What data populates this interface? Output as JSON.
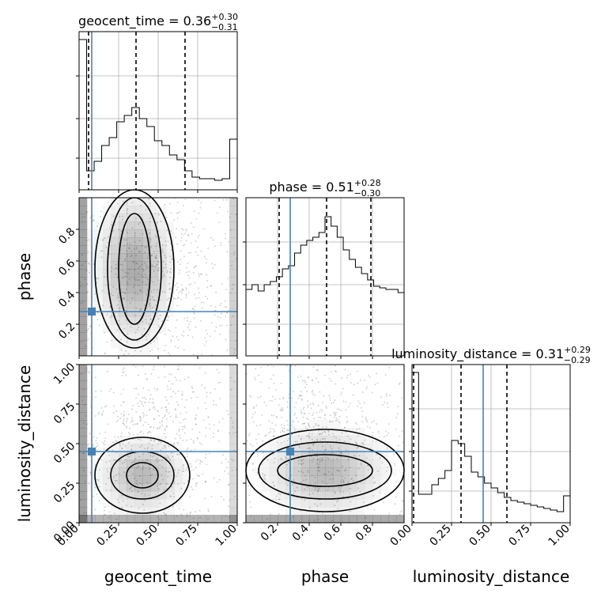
{
  "chart_data": {
    "type": "corner",
    "parameters": [
      "geocent_time",
      "phase",
      "luminosity_distance"
    ],
    "axis_labels": {
      "x": [
        "geocent_time",
        "phase",
        "luminosity_distance"
      ],
      "y_phase": "phase",
      "y_luminosity_distance": "luminosity_distance"
    },
    "ranges": {
      "geocent_time": [
        0,
        1
      ],
      "phase": [
        0,
        1
      ],
      "luminosity_distance": [
        0,
        1
      ]
    },
    "ticks": {
      "geocent_time": {
        "values": [
          0,
          0.25,
          0.5,
          0.75,
          1.0
        ],
        "labels": [
          "0.00",
          "0.25",
          "0.50",
          "0.75",
          "1.00"
        ]
      },
      "phase": {
        "values": [
          0.2,
          0.4,
          0.6,
          0.8
        ],
        "labels": [
          "0.2",
          "0.4",
          "0.6",
          "0.8"
        ]
      },
      "luminosity_distance": {
        "values": [
          0,
          0.25,
          0.5,
          0.75,
          1.0
        ],
        "labels": [
          "0.00",
          "0.25",
          "0.50",
          "0.75",
          "1.00"
        ]
      }
    },
    "titles": [
      {
        "param": "geocent_time",
        "prefix": "geocent_time = ",
        "median": "0.36",
        "plus": "+0.30",
        "minus": "−0.31"
      },
      {
        "param": "phase",
        "prefix": "phase = ",
        "median": "0.51",
        "plus": "+0.28",
        "minus": "−0.30"
      },
      {
        "param": "luminosity_distance",
        "prefix": "luminosity_distance = ",
        "median": "0.31",
        "plus": "+0.29",
        "minus": "−0.29"
      }
    ],
    "truths": {
      "geocent_time": 0.08,
      "phase": 0.28,
      "luminosity_distance": 0.45
    },
    "quantiles": {
      "geocent_time": [
        0.06,
        0.36,
        0.67
      ],
      "phase": [
        0.21,
        0.51,
        0.79
      ],
      "luminosity_distance": [
        0.01,
        0.31,
        0.6
      ]
    },
    "histograms": {
      "geocent_time": [
        0.95,
        0.12,
        0.18,
        0.28,
        0.33,
        0.43,
        0.47,
        0.52,
        0.45,
        0.4,
        0.31,
        0.28,
        0.22,
        0.19,
        0.12,
        0.08,
        0.07,
        0.07,
        0.06,
        0.07,
        0.32
      ],
      "phase": [
        0.42,
        0.45,
        0.41,
        0.45,
        0.47,
        0.5,
        0.55,
        0.57,
        0.65,
        0.7,
        0.73,
        0.75,
        0.78,
        0.88,
        0.82,
        0.75,
        0.67,
        0.61,
        0.56,
        0.52,
        0.48,
        0.44,
        0.43,
        0.42,
        0.42,
        0.4
      ],
      "luminosity_distance": [
        0.95,
        0.18,
        0.18,
        0.24,
        0.28,
        0.33,
        0.52,
        0.5,
        0.42,
        0.32,
        0.29,
        0.25,
        0.22,
        0.19,
        0.16,
        0.14,
        0.13,
        0.12,
        0.11,
        0.1,
        0.09,
        0.08,
        0.07,
        0.17
      ]
    },
    "hist_y_ticks": [
      0.2,
      0.45,
      0.72
    ],
    "grid": true
  },
  "colors": {
    "truth": "#4682b4",
    "contour": "#000000",
    "density": "#000000",
    "axis": "#000000",
    "grid": "#b0b0b0"
  }
}
